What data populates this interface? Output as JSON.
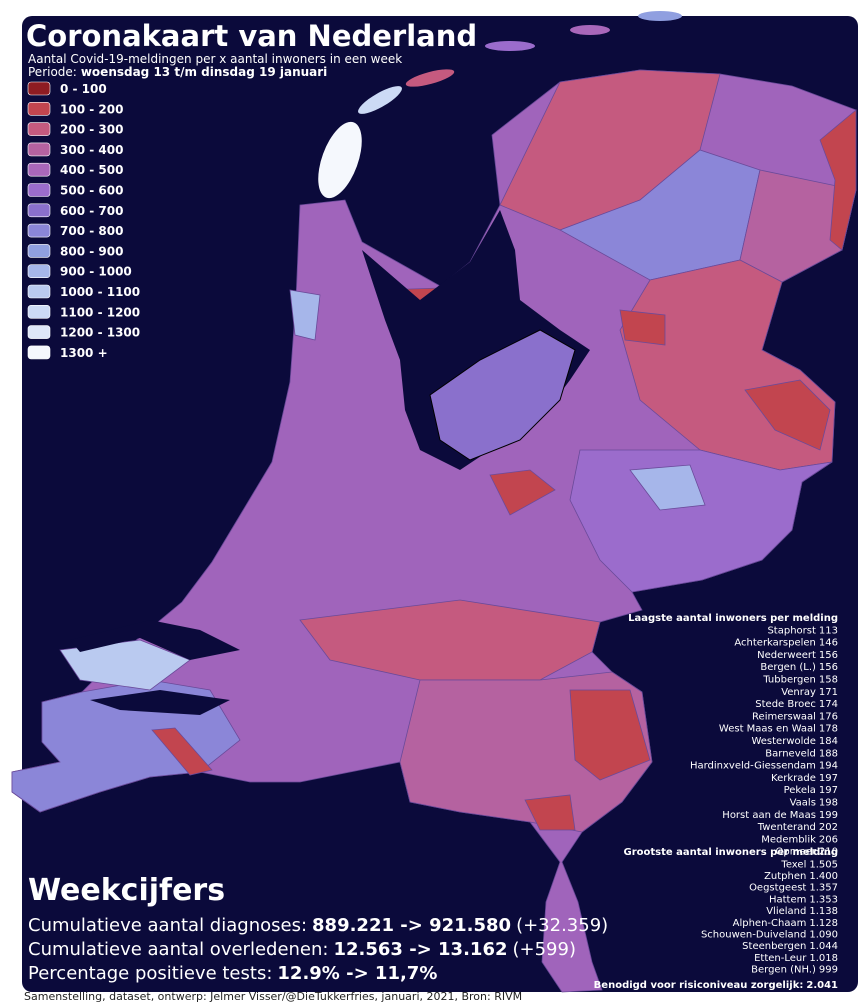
{
  "header": {
    "title": "Coronakaart van Nederland",
    "subtitle": "Aantal Covid-19-meldingen per x aantal inwoners in een week",
    "period_label": "Periode:",
    "period": "woensdag 13 t/m dinsdag 19 januari"
  },
  "legend": [
    {
      "label": "0 - 100",
      "color": "#8e1c22"
    },
    {
      "label": "100 - 200",
      "color": "#c2454f"
    },
    {
      "label": "200 - 300",
      "color": "#c55a7f"
    },
    {
      "label": "300 - 400",
      "color": "#b562a0"
    },
    {
      "label": "400 - 500",
      "color": "#a967ba"
    },
    {
      "label": "500 - 600",
      "color": "#9b6ccc"
    },
    {
      "label": "600 - 700",
      "color": "#8a70cc"
    },
    {
      "label": "700 - 800",
      "color": "#8b86d8"
    },
    {
      "label": "800 - 900",
      "color": "#909fe0"
    },
    {
      "label": "900 - 1000",
      "color": "#a6b6ea"
    },
    {
      "label": "1000 - 1100",
      "color": "#bacaf0"
    },
    {
      "label": "1100 - 1200",
      "color": "#ccdaf5"
    },
    {
      "label": "1200 - 1300",
      "color": "#dee7f8"
    },
    {
      "label": "1300 +",
      "color": "#f5f8fd"
    }
  ],
  "lowest": {
    "heading": "Laagste aantal inwoners per melding",
    "items": [
      {
        "name": "Staphorst",
        "value": "113"
      },
      {
        "name": "Achterkarspelen",
        "value": "146"
      },
      {
        "name": "Nederweert",
        "value": "156"
      },
      {
        "name": "Bergen (L.)",
        "value": "156"
      },
      {
        "name": "Tubbergen",
        "value": "158"
      },
      {
        "name": "Venray",
        "value": "171"
      },
      {
        "name": "Stede Broec",
        "value": "174"
      },
      {
        "name": "Reimerswaal",
        "value": "176"
      },
      {
        "name": "West Maas en Waal",
        "value": "178"
      },
      {
        "name": "Westerwolde",
        "value": "184"
      },
      {
        "name": "Barneveld",
        "value": "188"
      },
      {
        "name": "Hardinxveld-Giessendam",
        "value": "194"
      },
      {
        "name": "Kerkrade",
        "value": "197"
      },
      {
        "name": "Pekela",
        "value": "197"
      },
      {
        "name": "Vaals",
        "value": "198"
      },
      {
        "name": "Horst aan de Maas",
        "value": "199"
      },
      {
        "name": "Twenterand",
        "value": "202"
      },
      {
        "name": "Medemblik",
        "value": "206"
      },
      {
        "name": "Opmeer",
        "value": "210"
      }
    ]
  },
  "highest": {
    "heading": "Grootste aantal inwoners per melding",
    "items": [
      {
        "name": "Texel",
        "value": "1.505"
      },
      {
        "name": "Zutphen",
        "value": "1.400"
      },
      {
        "name": "Oegstgeest",
        "value": "1.357"
      },
      {
        "name": "Hattem",
        "value": "1.353"
      },
      {
        "name": "Vlieland",
        "value": "1.138"
      },
      {
        "name": "Alphen-Chaam",
        "value": "1.128"
      },
      {
        "name": "Schouwen-Duiveland",
        "value": "1.090"
      },
      {
        "name": "Steenbergen",
        "value": "1.044"
      },
      {
        "name": "Etten-Leur",
        "value": "1.018"
      },
      {
        "name": "Bergen (NH.)",
        "value": "999"
      }
    ]
  },
  "threshold": {
    "label": "Benodigd voor risiconiveau zorgelijk:",
    "value": "2.041"
  },
  "week": {
    "title": "Weekcijfers",
    "lines": [
      {
        "label": "Cumulatieve aantal diagnoses:",
        "value": "889.221 -> 921.580",
        "change": "(+32.359)"
      },
      {
        "label": "Cumulatieve aantal overledenen:",
        "value": "12.563 -> 13.162",
        "change": "(+599)"
      },
      {
        "label": "Percentage positieve tests:",
        "value": "12.9% -> 11,7%"
      }
    ]
  },
  "footer": "Samenstelling, dataset, ontwerp: Jelmer Visser/@DieTukkerfries, januari, 2021, Bron: RIVM"
}
